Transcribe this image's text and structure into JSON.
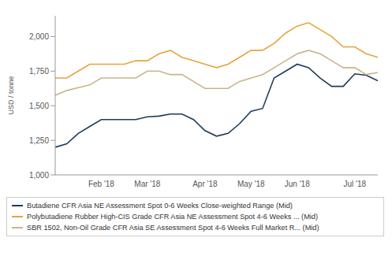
{
  "chart_data": {
    "type": "line",
    "y_label": "USD / tonne",
    "categories": [
      null,
      null,
      null,
      null,
      "Feb '18",
      null,
      null,
      null,
      "Mar '18",
      null,
      null,
      null,
      null,
      "Apr '18",
      null,
      null,
      null,
      "May '18",
      null,
      null,
      null,
      "Jun '18",
      null,
      null,
      null,
      null,
      "Jul '18",
      null,
      null
    ],
    "series": [
      {
        "name": "Butadiene CFR Asia NE Assessment Spot 0-6 Weeks Close-weighted Range (Mid)",
        "color": "#1f3b5a",
        "marker": "none",
        "line_style": "solid",
        "values": [
          1200,
          1225,
          1300,
          1350,
          1400,
          1400,
          1400,
          1400,
          1420,
          1425,
          1440,
          1440,
          1400,
          1320,
          1280,
          1300,
          1370,
          1460,
          1480,
          1700,
          1750,
          1800,
          1775,
          1700,
          1640,
          1640,
          1730,
          1720,
          1680
        ]
      },
      {
        "name": "Polybutadiene Rubber High-CIS Grade CFR Asia NE Assessment Spot 4-6 Weeks ... (Mid)",
        "color": "#e8a33d",
        "marker": "none",
        "line_style": "solid",
        "values": [
          1700,
          1700,
          1750,
          1800,
          1800,
          1800,
          1800,
          1825,
          1825,
          1875,
          1900,
          1850,
          1825,
          1800,
          1775,
          1800,
          1850,
          1900,
          1900,
          1950,
          2025,
          2075,
          2100,
          2050,
          2000,
          1925,
          1925,
          1875,
          1850
        ]
      },
      {
        "name": "SBR 1502, Non-Oil Grade CFR Asia SE Assessment Spot 4-6 Weeks Full Market R... (Mid)",
        "color": "#c9b48a",
        "marker": "none",
        "line_style": "solid",
        "values": [
          1575,
          1610,
          1630,
          1650,
          1700,
          1700,
          1700,
          1700,
          1750,
          1750,
          1725,
          1725,
          1675,
          1625,
          1625,
          1625,
          1675,
          1700,
          1725,
          1775,
          1825,
          1875,
          1900,
          1875,
          1825,
          1775,
          1775,
          1725,
          1740
        ]
      }
    ],
    "ylim": [
      1000,
      2150
    ],
    "yticks": [
      {
        "value": 1000,
        "label": "1,000"
      },
      {
        "value": 1250,
        "label": "1,250"
      },
      {
        "value": 1500,
        "label": "1,500"
      },
      {
        "value": 1750,
        "label": "1,750"
      },
      {
        "value": 2000,
        "label": "2,000"
      }
    ],
    "grid": false
  }
}
